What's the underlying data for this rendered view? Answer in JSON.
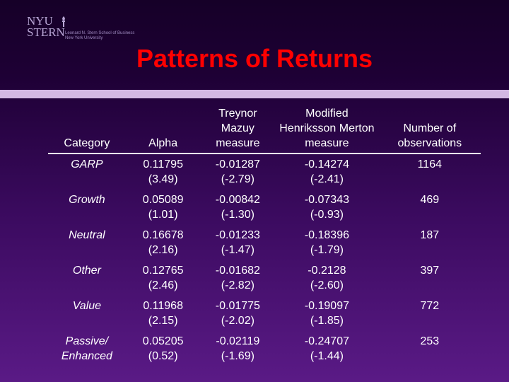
{
  "logo": {
    "line1": "NYU",
    "line2": "STERN",
    "school_line1": "Leonard N. Stern School of Business",
    "school_line2": "New York University"
  },
  "title": "Patterns of Returns",
  "table": {
    "headers": [
      "Category",
      "Alpha",
      "Treynor Mazuy measure",
      "Modified Henriksson Merton measure",
      "Number of observations"
    ],
    "rows": [
      {
        "category": "GARP",
        "alpha": "0.11795",
        "alpha_t": "(3.49)",
        "tm": "-0.01287",
        "tm_t": "(-2.79)",
        "hm": "-0.14274",
        "hm_t": "(-2.41)",
        "n": "1164"
      },
      {
        "category": "Growth",
        "alpha": "0.05089",
        "alpha_t": "(1.01)",
        "tm": "-0.00842",
        "tm_t": "(-1.30)",
        "hm": "-0.07343",
        "hm_t": "(-0.93)",
        "n": "469"
      },
      {
        "category": "Neutral",
        "alpha": "0.16678",
        "alpha_t": "(2.16)",
        "tm": "-0.01233",
        "tm_t": "(-1.47)",
        "hm": "-0.18396",
        "hm_t": "(-1.79)",
        "n": "187"
      },
      {
        "category": "Other",
        "alpha": "0.12765",
        "alpha_t": "(2.46)",
        "tm": "-0.01682",
        "tm_t": "(-2.82)",
        "hm": "-0.2128",
        "hm_t": "(-2.60)",
        "n": "397"
      },
      {
        "category": "Value",
        "alpha": "0.11968",
        "alpha_t": "(2.15)",
        "tm": "-0.01775",
        "tm_t": "(-2.02)",
        "hm": "-0.19097",
        "hm_t": "(-1.85)",
        "n": "772"
      },
      {
        "category": "Passive/ Enhanced",
        "alpha": "0.05205",
        "alpha_t": "(0.52)",
        "tm": "-0.02119",
        "tm_t": "(-1.69)",
        "hm": "-0.24707",
        "hm_t": "(-1.44)",
        "n": "253"
      }
    ]
  },
  "colors": {
    "title": "#ff0000",
    "bar": "#d3b8e3",
    "text": "#ffffff"
  }
}
